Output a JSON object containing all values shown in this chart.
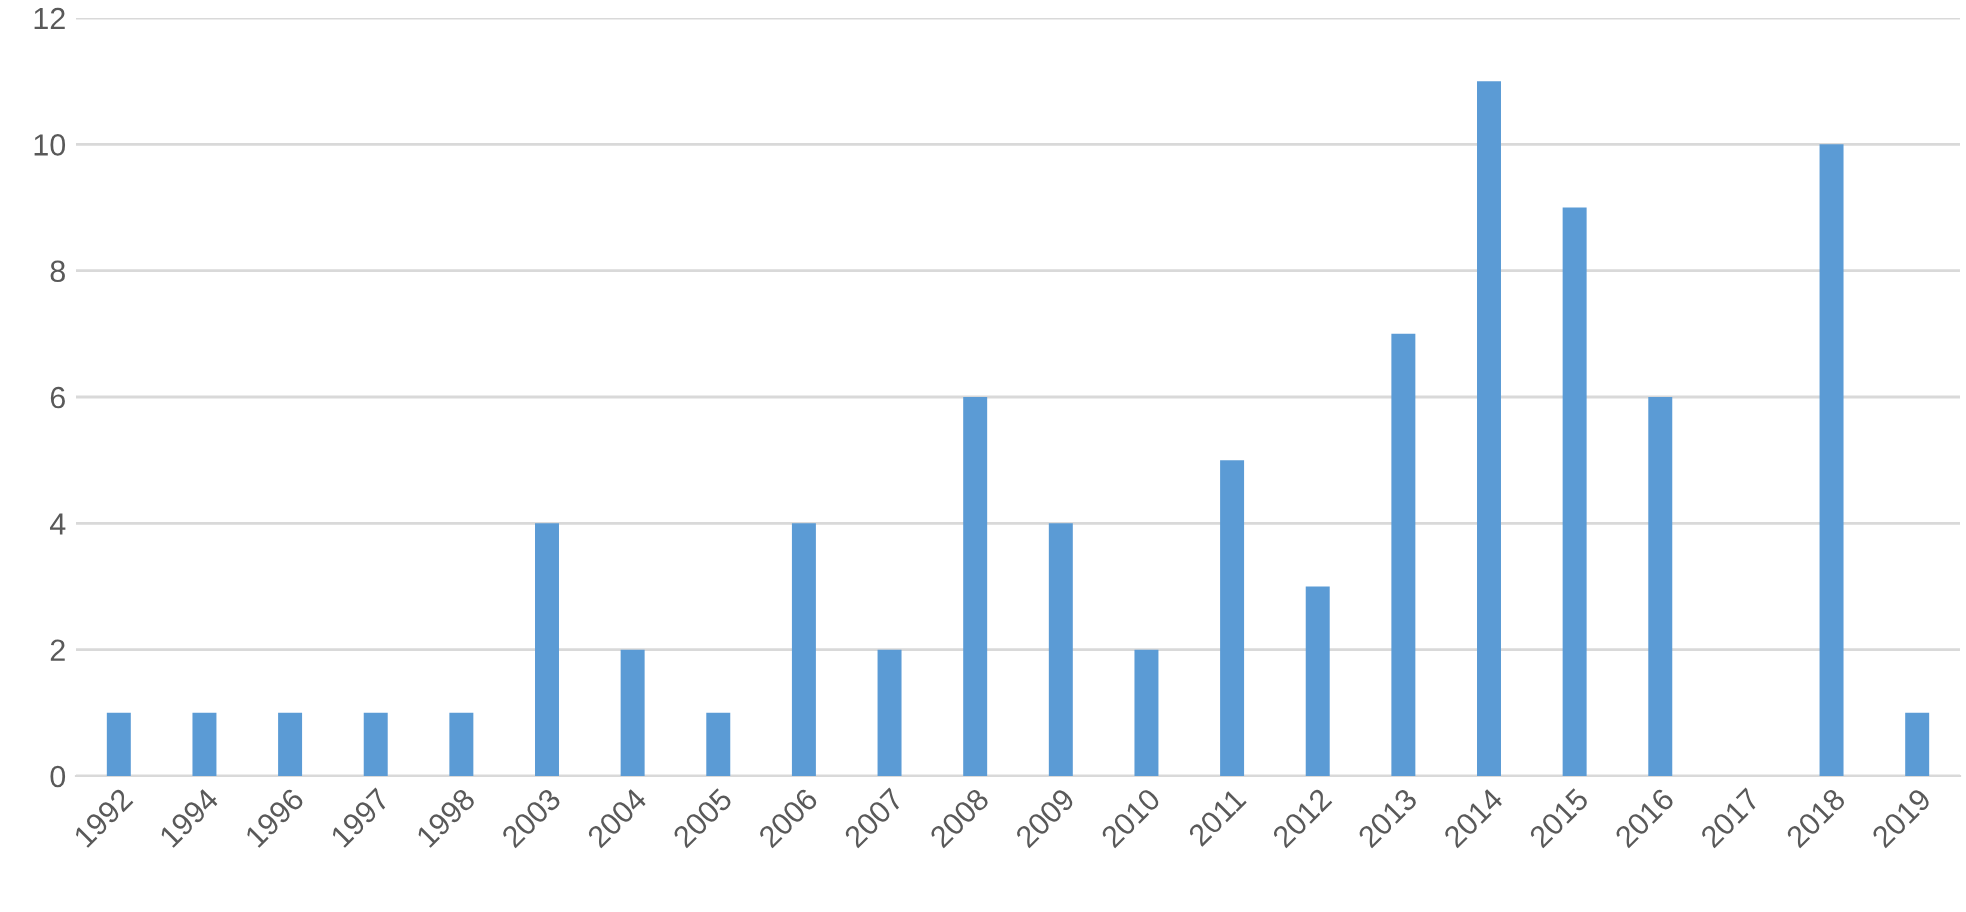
{
  "chart_data": {
    "type": "bar",
    "categories": [
      "1992",
      "1994",
      "1996",
      "1997",
      "1998",
      "2003",
      "2004",
      "2005",
      "2006",
      "2007",
      "2008",
      "2009",
      "2010",
      "2011",
      "2012",
      "2013",
      "2014",
      "2015",
      "2016",
      "2017",
      "2018",
      "2019"
    ],
    "values": [
      1,
      1,
      1,
      1,
      1,
      4,
      2,
      1,
      4,
      2,
      6,
      4,
      2,
      5,
      3,
      7,
      11,
      9,
      6,
      0,
      10,
      1
    ],
    "color": "#5b9bd5",
    "ylim": [
      0,
      12
    ],
    "yticks": [
      0,
      2,
      4,
      6,
      8,
      10,
      12
    ],
    "grid": "y"
  }
}
